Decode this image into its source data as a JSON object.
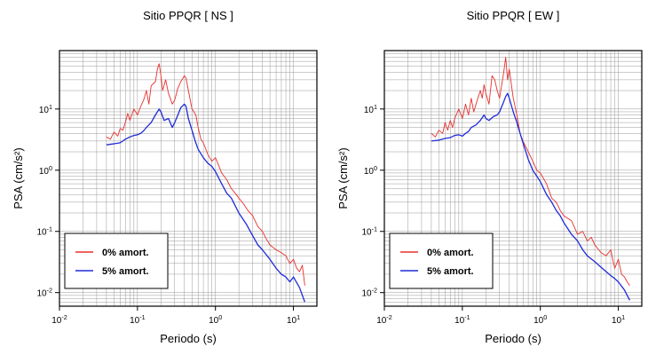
{
  "chart_data": [
    {
      "type": "line",
      "title": "Sitio PPQR [ NS ]",
      "xlabel": "Periodo (s)",
      "ylabel": "PSA (cm/s²)",
      "xscale": "log",
      "yscale": "log",
      "xlim": [
        0.01,
        20
      ],
      "ylim": [
        0.006,
        90
      ],
      "x_ticks": [
        "10-2",
        "10-1",
        "100",
        "101"
      ],
      "y_ticks": [
        "10-2",
        "10-1",
        "100",
        "101"
      ],
      "grid": true,
      "legend_position": "bottom-left",
      "series": [
        {
          "name": "0% amort.",
          "color": "#e8302c",
          "x": [
            0.04,
            0.045,
            0.05,
            0.056,
            0.06,
            0.065,
            0.07,
            0.075,
            0.08,
            0.09,
            0.1,
            0.11,
            0.12,
            0.13,
            0.14,
            0.15,
            0.17,
            0.18,
            0.19,
            0.2,
            0.21,
            0.23,
            0.25,
            0.28,
            0.3,
            0.33,
            0.36,
            0.4,
            0.42,
            0.45,
            0.5,
            0.56,
            0.6,
            0.65,
            0.7,
            0.8,
            0.9,
            1.0,
            1.1,
            1.2,
            1.4,
            1.6,
            1.8,
            2.0,
            2.3,
            2.6,
            3.0,
            3.5,
            4.0,
            4.5,
            5.0,
            6.0,
            7.0,
            8.0,
            9.0,
            10.0,
            11.0,
            12.0,
            13.0,
            14.0
          ],
          "values": [
            3.5,
            3.2,
            4.2,
            3.6,
            4.8,
            4.5,
            6.0,
            8.5,
            6.5,
            10,
            8,
            11,
            14,
            20,
            12,
            24,
            28,
            45,
            55,
            35,
            20,
            30,
            18,
            12,
            14,
            22,
            28,
            35,
            32,
            20,
            10,
            8,
            5,
            3.2,
            2.8,
            1.8,
            1.4,
            1.6,
            1.2,
            0.9,
            0.7,
            0.5,
            0.42,
            0.35,
            0.28,
            0.22,
            0.18,
            0.12,
            0.1,
            0.075,
            0.06,
            0.05,
            0.045,
            0.04,
            0.03,
            0.035,
            0.025,
            0.022,
            0.028,
            0.013
          ]
        },
        {
          "name": "5% amort.",
          "color": "#1f2bd8",
          "x": [
            0.04,
            0.05,
            0.06,
            0.07,
            0.08,
            0.09,
            0.1,
            0.11,
            0.12,
            0.13,
            0.15,
            0.17,
            0.19,
            0.2,
            0.22,
            0.25,
            0.28,
            0.3,
            0.33,
            0.36,
            0.4,
            0.42,
            0.45,
            0.5,
            0.55,
            0.6,
            0.7,
            0.8,
            0.9,
            1.0,
            1.2,
            1.4,
            1.6,
            1.8,
            2.0,
            2.5,
            3.0,
            3.5,
            4.0,
            5.0,
            6.0,
            7.0,
            8.0,
            9.0,
            10.0,
            12.0,
            14.0
          ],
          "values": [
            2.6,
            2.7,
            2.8,
            3.2,
            3.5,
            3.7,
            3.8,
            4.0,
            4.4,
            5.0,
            6.0,
            8.0,
            10.0,
            9.0,
            6.5,
            7.0,
            5.0,
            6.0,
            8.0,
            10.5,
            12.0,
            11.0,
            7.0,
            4.5,
            3.0,
            2.2,
            1.6,
            1.3,
            1.15,
            0.95,
            0.6,
            0.42,
            0.35,
            0.26,
            0.2,
            0.13,
            0.085,
            0.06,
            0.05,
            0.035,
            0.025,
            0.02,
            0.018,
            0.015,
            0.018,
            0.012,
            0.007
          ]
        }
      ]
    },
    {
      "type": "line",
      "title": "Sitio PPQR [ EW ]",
      "xlabel": "Periodo (s)",
      "ylabel": "PSA (cm/s²)",
      "xscale": "log",
      "yscale": "log",
      "xlim": [
        0.01,
        20
      ],
      "ylim": [
        0.006,
        90
      ],
      "x_ticks": [
        "10-2",
        "10-1",
        "100",
        "101"
      ],
      "y_ticks": [
        "10-2",
        "10-1",
        "100",
        "101"
      ],
      "grid": true,
      "legend_position": "bottom-left",
      "series": [
        {
          "name": "0% amort.",
          "color": "#e8302c",
          "x": [
            0.04,
            0.045,
            0.05,
            0.056,
            0.06,
            0.065,
            0.07,
            0.075,
            0.08,
            0.09,
            0.1,
            0.11,
            0.12,
            0.13,
            0.14,
            0.15,
            0.17,
            0.18,
            0.19,
            0.2,
            0.22,
            0.24,
            0.26,
            0.28,
            0.3,
            0.32,
            0.34,
            0.36,
            0.38,
            0.4,
            0.45,
            0.5,
            0.55,
            0.6,
            0.7,
            0.8,
            0.9,
            1.0,
            1.2,
            1.4,
            1.6,
            1.8,
            2.0,
            2.5,
            3.0,
            3.5,
            4.0,
            4.5,
            5.0,
            6.0,
            7.0,
            8.0,
            9.0,
            10.0,
            11.0,
            12.0,
            13.0,
            14.0
          ],
          "values": [
            4.0,
            3.5,
            4.5,
            4.0,
            6.0,
            4.5,
            6.5,
            5.0,
            7.0,
            10.0,
            7.0,
            12.0,
            8.0,
            15.0,
            9.0,
            12.0,
            20.0,
            15.0,
            25.0,
            18.0,
            12.0,
            35.0,
            30.0,
            20.0,
            15.0,
            25.0,
            40.0,
            70.0,
            30.0,
            45.0,
            15.0,
            8.0,
            4.0,
            3.0,
            2.0,
            1.4,
            1.0,
            0.9,
            0.6,
            0.35,
            0.3,
            0.22,
            0.18,
            0.15,
            0.09,
            0.1,
            0.07,
            0.08,
            0.06,
            0.045,
            0.04,
            0.05,
            0.025,
            0.035,
            0.02,
            0.018,
            0.015,
            0.013
          ]
        },
        {
          "name": "5% amort.",
          "color": "#1f2bd8",
          "x": [
            0.04,
            0.05,
            0.06,
            0.07,
            0.08,
            0.09,
            0.1,
            0.11,
            0.12,
            0.13,
            0.15,
            0.17,
            0.19,
            0.2,
            0.22,
            0.25,
            0.28,
            0.3,
            0.33,
            0.36,
            0.38,
            0.4,
            0.45,
            0.5,
            0.55,
            0.6,
            0.7,
            0.8,
            0.9,
            1.0,
            1.2,
            1.4,
            1.6,
            1.8,
            2.0,
            2.5,
            3.0,
            3.5,
            4.0,
            5.0,
            6.0,
            7.0,
            8.0,
            9.0,
            10.0,
            12.0,
            14.0
          ],
          "values": [
            3.0,
            3.1,
            3.3,
            3.4,
            3.7,
            3.8,
            3.6,
            4.0,
            4.3,
            5.0,
            5.5,
            6.5,
            8.0,
            7.0,
            6.5,
            7.5,
            8.0,
            9.0,
            12.0,
            16.0,
            18.0,
            15.0,
            9.0,
            6.0,
            4.0,
            2.8,
            1.5,
            1.0,
            0.8,
            0.65,
            0.4,
            0.3,
            0.22,
            0.18,
            0.14,
            0.09,
            0.07,
            0.05,
            0.04,
            0.032,
            0.026,
            0.022,
            0.019,
            0.017,
            0.015,
            0.011,
            0.0075
          ]
        }
      ]
    }
  ]
}
